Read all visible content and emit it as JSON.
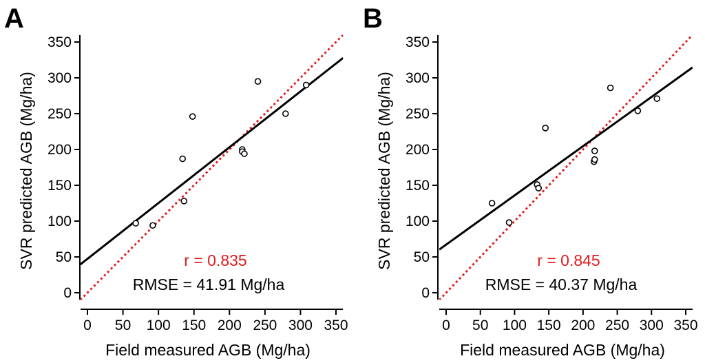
{
  "colors": {
    "reference_line": "#e31a1c",
    "r_text": "#e31a1c",
    "points": "#000000",
    "fit": "#000000"
  },
  "chart_data": [
    {
      "panel_label": "A",
      "type": "scatter",
      "xlabel": "Field measured AGB (Mg/ha)",
      "ylabel": "SVR predicted AGB (Mg/ha)",
      "xlim": [
        -10,
        360
      ],
      "ylim": [
        -10,
        360
      ],
      "xticks": [
        "0",
        "50",
        "100",
        "150",
        "200",
        "250",
        "300",
        "350"
      ],
      "yticks": [
        "0",
        "50",
        "100",
        "150",
        "200",
        "250",
        "300",
        "350"
      ],
      "points": [
        {
          "x": 68,
          "y": 97
        },
        {
          "x": 92,
          "y": 94
        },
        {
          "x": 134,
          "y": 187
        },
        {
          "x": 136,
          "y": 128
        },
        {
          "x": 148,
          "y": 246
        },
        {
          "x": 218,
          "y": 200
        },
        {
          "x": 218,
          "y": 197
        },
        {
          "x": 221,
          "y": 194
        },
        {
          "x": 240,
          "y": 295
        },
        {
          "x": 279,
          "y": 250
        },
        {
          "x": 308,
          "y": 290
        }
      ],
      "fit_line": {
        "slope": 0.779,
        "intercept": 47.3
      },
      "reference_line": "1:1",
      "r_text": "r = 0.835",
      "rmse_text": "RMSE =  41.91 Mg/ha"
    },
    {
      "panel_label": "B",
      "type": "scatter",
      "xlabel": "Field measured AGB (Mg/ha)",
      "ylabel": "SVR predicted AGB (Mg/ha)",
      "xlim": [
        -10,
        360
      ],
      "ylim": [
        -10,
        360
      ],
      "xticks": [
        "0",
        "50",
        "100",
        "150",
        "200",
        "250",
        "300",
        "350"
      ],
      "yticks": [
        "0",
        "50",
        "100",
        "150",
        "200",
        "250",
        "300",
        "350"
      ],
      "points": [
        {
          "x": 67,
          "y": 125
        },
        {
          "x": 92,
          "y": 98
        },
        {
          "x": 133,
          "y": 151
        },
        {
          "x": 135,
          "y": 146
        },
        {
          "x": 145,
          "y": 230
        },
        {
          "x": 216,
          "y": 183
        },
        {
          "x": 217,
          "y": 186
        },
        {
          "x": 217,
          "y": 198
        },
        {
          "x": 240,
          "y": 286
        },
        {
          "x": 280,
          "y": 254
        },
        {
          "x": 308,
          "y": 271
        }
      ],
      "fit_line": {
        "slope": 0.687,
        "intercept": 67.2
      },
      "reference_line": "1:1",
      "r_text": "r = 0.845",
      "rmse_text": "RMSE =  40.37 Mg/ha"
    }
  ]
}
